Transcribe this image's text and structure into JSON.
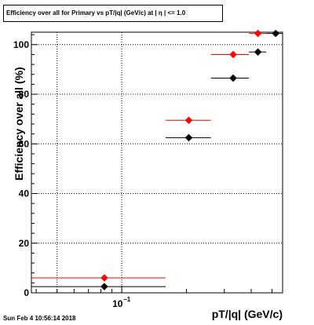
{
  "chart_data": {
    "type": "scatter",
    "title": "Efficiency over all for Primary vs pT/|q| (GeV/c) at | η | <= 1.0",
    "xlabel": "pT/|q| (GeV/c)",
    "ylabel": "Efficiency over all (%)",
    "ylim": [
      0,
      105
    ],
    "yticks": [
      "0",
      "20",
      "40",
      "60",
      "80",
      "100"
    ],
    "xscale": "log",
    "xtick_label": "10",
    "xtick_exponent": "−1",
    "grid": true,
    "series": [
      {
        "color": "#ff0000",
        "points": [
          {
            "x": 0.083,
            "xerr": [
              0.038,
              0.16
            ],
            "y": 6
          },
          {
            "x": 0.205,
            "xerr": [
              0.16,
              0.26
            ],
            "y": 69.5
          },
          {
            "x": 0.33,
            "xerr": [
              0.26,
              0.39
            ],
            "y": 96
          },
          {
            "x": 0.43,
            "xerr": [
              0.39,
              0.47
            ],
            "y": 104.5
          }
        ]
      },
      {
        "color": "#000000",
        "points": [
          {
            "x": 0.083,
            "xerr": [
              0.038,
              0.16
            ],
            "y": 2.5
          },
          {
            "x": 0.205,
            "xerr": [
              0.16,
              0.26
            ],
            "y": 62.5
          },
          {
            "x": 0.33,
            "xerr": [
              0.26,
              0.39
            ],
            "y": 86.5
          },
          {
            "x": 0.43,
            "xerr": [
              0.39,
              0.47
            ],
            "y": 97
          },
          {
            "x": 0.52,
            "xerr": [
              0.47,
              0.56
            ],
            "y": 104.5
          }
        ]
      }
    ]
  },
  "footer": {
    "datestamp": "Sun Feb  4 10:56:14 2018"
  }
}
